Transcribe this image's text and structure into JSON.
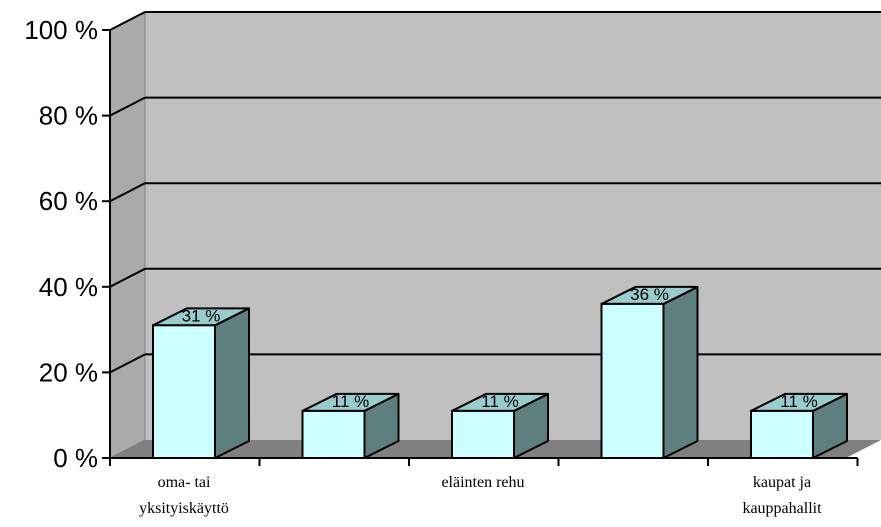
{
  "chart_data": {
    "type": "bar",
    "style": "3d-column",
    "categories": [
      "oma- tai yksityiskäyttö",
      "",
      "eläinten rehu",
      "",
      "kaupat ja kauppahallit"
    ],
    "category_label_lines": [
      [
        "oma- tai",
        "yksityiskäyttö"
      ],
      [],
      [
        "eläinten rehu"
      ],
      [],
      [
        "kaupat ja",
        "kauppahallit"
      ]
    ],
    "values": [
      31,
      11,
      11,
      36,
      11
    ],
    "data_labels": [
      "31 %",
      "11 %",
      "11 %",
      "36 %",
      "11 %"
    ],
    "yticks": [
      "0 %",
      "20 %",
      "40 %",
      "60 %",
      "80 %",
      "100 %"
    ],
    "ylim": [
      0,
      100
    ],
    "grid": true,
    "legend": "none",
    "colors": {
      "bar_front": "#ccffff",
      "bar_side": "#5e7f7f",
      "bar_top": "#99cccc",
      "back_wall": "#c0c0c0",
      "side_wall": "#aaaaaa",
      "floor": "#808080",
      "gridline": "#000000"
    }
  }
}
